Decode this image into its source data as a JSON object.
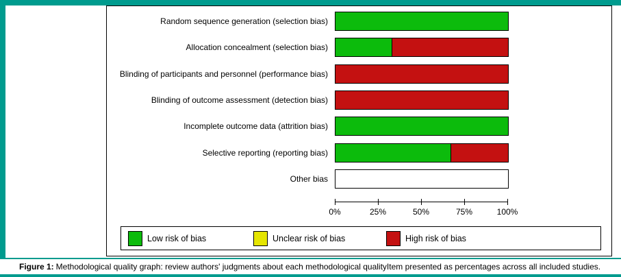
{
  "page": {
    "accent_color": "#009b8e"
  },
  "chart_data": {
    "type": "bar",
    "orientation": "horizontal",
    "stacked": true,
    "title": "",
    "xlabel": "",
    "ylabel": "",
    "xlim": [
      0,
      100
    ],
    "grid": false,
    "legend_position": "bottom-box",
    "categories": [
      "Random sequence generation (selection bias)",
      "Allocation concealment (selection bias)",
      "Blinding of participants and personnel (performance bias)",
      "Blinding of outcome assessment (detection bias)",
      "Incomplete outcome data (attrition bias)",
      "Selective reporting (reporting bias)",
      "Other bias"
    ],
    "series": [
      {
        "name": "Low risk of bias",
        "color": "#0cbb0c",
        "values": [
          100,
          33,
          0,
          0,
          100,
          67,
          0
        ]
      },
      {
        "name": "Unclear risk of bias",
        "color": "#e5e500",
        "values": [
          0,
          0,
          0,
          0,
          0,
          0,
          0
        ]
      },
      {
        "name": "High risk of bias",
        "color": "#c41111",
        "values": [
          0,
          67,
          100,
          100,
          0,
          33,
          0
        ]
      }
    ],
    "x_ticks": [
      {
        "label": "0%",
        "value": 0
      },
      {
        "label": "25%",
        "value": 25
      },
      {
        "label": "50%",
        "value": 50
      },
      {
        "label": "75%",
        "value": 75
      },
      {
        "label": "100%",
        "value": 100
      }
    ]
  },
  "legend": {
    "items": [
      {
        "label": "Low risk of bias",
        "color": "#0cbb0c"
      },
      {
        "label": "Unclear risk of bias",
        "color": "#e5e500"
      },
      {
        "label": "High risk of bias",
        "color": "#c41111"
      }
    ]
  },
  "caption": {
    "label": "Figure 1:",
    "text": "Methodological quality graph: review authors' judgments about each methodological qualityItem presented as percentages across all included studies."
  }
}
